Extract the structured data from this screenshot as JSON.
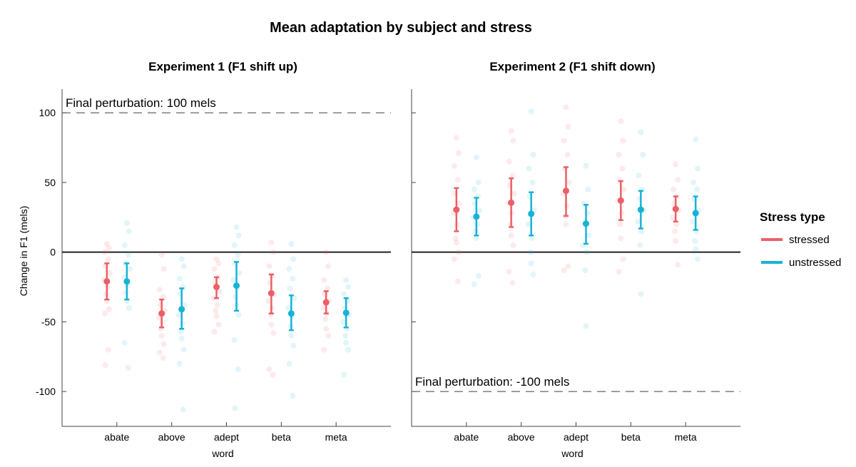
{
  "figure": {
    "title": "Mean adaptation by subject and stress",
    "ylabel": "Change in F1 (mels)"
  },
  "legend": {
    "title": "Stress type",
    "items": [
      {
        "label": "stressed",
        "color": "#EC5F67"
      },
      {
        "label": "unstressed",
        "color": "#17B3D6"
      }
    ]
  },
  "chart_data": [
    {
      "type": "scatter",
      "title": "Experiment 1 (F1 shift up)",
      "xlabel": "word",
      "ylabel": "Change in F1 (mels)",
      "categories": [
        "abate",
        "above",
        "adept",
        "beta",
        "meta"
      ],
      "ylim": [
        -125,
        117
      ],
      "yticks": [
        -100,
        -50,
        0,
        50,
        100
      ],
      "reference_line": {
        "y": 100,
        "label": "Final perturbation: 100 mels"
      },
      "zero_line": 0,
      "series": [
        {
          "name": "stressed",
          "color": "#EC5F67",
          "mean": [
            -21,
            -44,
            -25,
            -29.5,
            -36
          ],
          "ci_low": [
            -34,
            -54,
            -33,
            -44,
            -44
          ],
          "ci_high": [
            -8,
            -34,
            -18,
            -16,
            -28
          ],
          "individual": [
            [
              6,
              3,
              0,
              -5,
              -10,
              -15,
              -20,
              -25,
              -30,
              -35,
              -41,
              -44,
              -70,
              -81
            ],
            [
              -2,
              -12,
              -27,
              -32,
              -38,
              -42,
              -47,
              -50,
              -55,
              -60,
              -66,
              -72,
              -76
            ],
            [
              -5,
              -8,
              -12,
              -18,
              -22,
              -28,
              -33,
              -38,
              -42,
              -46,
              -52,
              -57
            ],
            [
              7,
              0,
              -10,
              -17,
              -22,
              -30,
              -35,
              -40,
              -45,
              -52,
              -58,
              -84,
              -88
            ],
            [
              0,
              -10,
              -20,
              -26,
              -30,
              -35,
              -40,
              -44,
              -48,
              -55,
              -60,
              -70
            ]
          ]
        },
        {
          "name": "unstressed",
          "color": "#17B3D6",
          "mean": [
            -21,
            -41,
            -24,
            -44,
            -43.5
          ],
          "ci_low": [
            -34,
            -55,
            -42,
            -56,
            -54
          ],
          "ci_high": [
            -8,
            -26,
            -7,
            -31,
            -33
          ],
          "individual": [
            [
              21,
              15,
              5,
              -2,
              -8,
              -12,
              -18,
              -24,
              -29,
              -35,
              -40,
              -65,
              -83
            ],
            [
              -5,
              -10,
              -19,
              -25,
              -30,
              -38,
              -45,
              -51,
              -57,
              -62,
              -70,
              -80,
              -113
            ],
            [
              18,
              12,
              5,
              -2,
              -8,
              -15,
              -20,
              -26,
              -32,
              -38,
              -45,
              -63,
              -84,
              -112
            ],
            [
              6,
              -5,
              -12,
              -19,
              -26,
              -33,
              -40,
              -46,
              -53,
              -60,
              -67,
              -80,
              -103
            ],
            [
              -20,
              -25,
              -30,
              -35,
              -40,
              -45,
              -50,
              -55,
              -60,
              -65,
              -70,
              -88
            ]
          ]
        }
      ]
    },
    {
      "type": "scatter",
      "title": "Experiment 2 (F1 shift down)",
      "xlabel": "word",
      "ylabel": "",
      "categories": [
        "abate",
        "above",
        "adept",
        "beta",
        "meta"
      ],
      "ylim": [
        -125,
        117
      ],
      "yticks": [
        -100,
        -50,
        0,
        50,
        100
      ],
      "reference_line": {
        "y": -100,
        "label": "Final perturbation: -100 mels"
      },
      "zero_line": 0,
      "series": [
        {
          "name": "stressed",
          "color": "#EC5F67",
          "mean": [
            30.5,
            35.5,
            44,
            37,
            31
          ],
          "ci_low": [
            15,
            18,
            26,
            23,
            22
          ],
          "ci_high": [
            46,
            53,
            61,
            51,
            40
          ],
          "individual": [
            [
              82,
              71,
              62,
              52,
              42,
              35,
              28,
              20,
              10,
              7,
              0,
              -5,
              -21
            ],
            [
              87,
              80,
              65,
              55,
              48,
              42,
              35,
              28,
              20,
              12,
              5,
              -14,
              -22
            ],
            [
              104,
              90,
              80,
              70,
              60,
              50,
              42,
              33,
              26,
              20,
              -10,
              -13
            ],
            [
              94,
              80,
              70,
              60,
              52,
              45,
              37,
              28,
              20,
              10,
              -5,
              -14
            ],
            [
              63,
              52,
              45,
              40,
              35,
              30,
              25,
              20,
              15,
              8,
              -9
            ]
          ]
        },
        {
          "name": "unstressed",
          "color": "#17B3D6",
          "mean": [
            25.5,
            27.5,
            20.5,
            30.5,
            28
          ],
          "ci_low": [
            12,
            12,
            6,
            17,
            16
          ],
          "ci_high": [
            39,
            43,
            34,
            44,
            40
          ],
          "individual": [
            [
              68,
              50,
              45,
              40,
              35,
              30,
              25,
              20,
              15,
              10,
              -17,
              -23
            ],
            [
              101,
              70,
              60,
              50,
              40,
              30,
              20,
              10,
              0,
              -8,
              -16
            ],
            [
              62,
              45,
              35,
              28,
              20,
              12,
              5,
              0,
              -13,
              -53
            ],
            [
              86,
              70,
              55,
              45,
              38,
              30,
              22,
              15,
              5,
              -30
            ],
            [
              81,
              60,
              50,
              45,
              38,
              30,
              22,
              15,
              8,
              2,
              -5
            ]
          ]
        }
      ]
    }
  ]
}
